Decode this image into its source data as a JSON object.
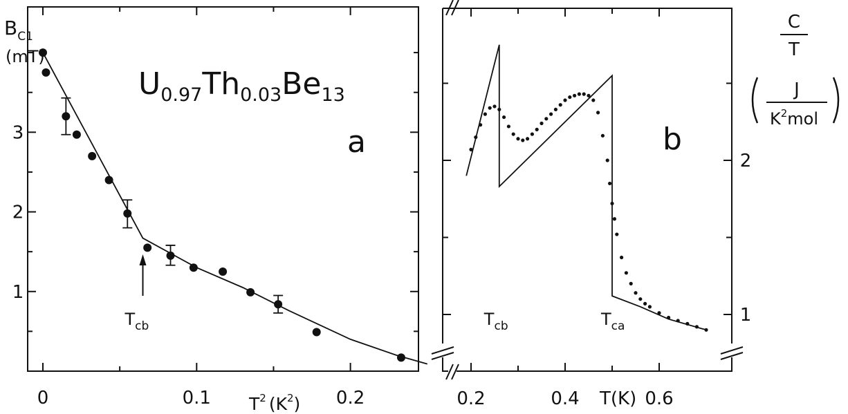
{
  "colors": {
    "ink": "#111111",
    "background": "#ffffff"
  },
  "chart_data": [
    {
      "panel": "a",
      "type": "scatter",
      "title": "U0.97Th0.03Be13",
      "formula": {
        "el1": "U",
        "sub1": "0.97",
        "el2": "Th",
        "sub2": "0.03",
        "el3": "Be",
        "sub3": "13"
      },
      "panel_label": "a",
      "ylabel": {
        "main": "B",
        "sub": "C1",
        "unit": "(mT)"
      },
      "xlabel": {
        "main": "T",
        "sup": "2",
        "unit": "(K",
        "unit_sup": "2",
        "close": ")"
      },
      "xlim": [
        0,
        0.26
      ],
      "ylim": [
        0,
        4.4
      ],
      "xticks": [
        0,
        0.1,
        0.2
      ],
      "xtick_labels": [
        "0",
        "0.1",
        "0.2"
      ],
      "yticks": [
        1,
        2,
        3
      ],
      "ytick_labels": [
        "1",
        "2",
        "3"
      ],
      "grid": false,
      "annotation": {
        "main": "T",
        "sub": "cb",
        "arrow_x": 0.065
      },
      "series": [
        {
          "kind": "points",
          "x": [
            0.0,
            0.002,
            0.015,
            0.022,
            0.032,
            0.043,
            0.055,
            0.068,
            0.083,
            0.098,
            0.117,
            0.135,
            0.153,
            0.178,
            0.233
          ],
          "y": [
            4.0,
            3.75,
            3.2,
            2.97,
            2.7,
            2.4,
            1.98,
            1.55,
            1.45,
            1.3,
            1.25,
            0.99,
            0.84,
            0.49,
            0.17
          ],
          "error_bars": [
            {
              "x": 0.015,
              "low": 2.97,
              "high": 3.43
            },
            {
              "x": 0.055,
              "low": 1.8,
              "high": 2.15
            },
            {
              "x": 0.083,
              "low": 1.33,
              "high": 1.58
            },
            {
              "x": 0.153,
              "low": 0.73,
              "high": 0.95
            }
          ]
        },
        {
          "kind": "line",
          "x": [
            0.0,
            0.065,
            0.1,
            0.13,
            0.16,
            0.2,
            0.23,
            0.25
          ],
          "y": [
            4.0,
            1.67,
            1.3,
            1.05,
            0.76,
            0.4,
            0.2,
            0.09
          ]
        }
      ]
    },
    {
      "panel": "b",
      "type": "scatter",
      "panel_label": "b",
      "ylabel": {
        "num": "C",
        "den": "T",
        "unit_num": "J",
        "unit_den_main": "K",
        "unit_den_sup": "2",
        "unit_den_rest": "mol"
      },
      "xlabel": {
        "text": "T(K)"
      },
      "xlim": [
        0.18,
        0.7
      ],
      "ylim": [
        0.85,
        2.85
      ],
      "xticks": [
        0.2,
        0.4,
        0.6
      ],
      "xtick_labels": [
        "0.2",
        "0.4",
        "0.6"
      ],
      "yticks": [
        1,
        2
      ],
      "ytick_labels": [
        "1",
        "2"
      ],
      "grid": false,
      "annotations": [
        {
          "main": "T",
          "sub": "cb",
          "x": 0.26
        },
        {
          "main": "T",
          "sub": "ca",
          "x": 0.5
        }
      ],
      "series": [
        {
          "kind": "points",
          "x": [
            0.2,
            0.21,
            0.22,
            0.23,
            0.24,
            0.25,
            0.26,
            0.27,
            0.28,
            0.29,
            0.3,
            0.31,
            0.32,
            0.33,
            0.34,
            0.35,
            0.36,
            0.37,
            0.38,
            0.39,
            0.4,
            0.41,
            0.42,
            0.43,
            0.44,
            0.45,
            0.46,
            0.47,
            0.48,
            0.49,
            0.495,
            0.5,
            0.505,
            0.51,
            0.52,
            0.53,
            0.54,
            0.55,
            0.56,
            0.57,
            0.58,
            0.6,
            0.62,
            0.64,
            0.66,
            0.68,
            0.7
          ],
          "y": [
            2.07,
            2.15,
            2.23,
            2.3,
            2.34,
            2.35,
            2.33,
            2.28,
            2.22,
            2.17,
            2.14,
            2.13,
            2.14,
            2.17,
            2.2,
            2.24,
            2.27,
            2.3,
            2.33,
            2.36,
            2.39,
            2.41,
            2.42,
            2.43,
            2.43,
            2.42,
            2.39,
            2.31,
            2.16,
            2.0,
            1.85,
            1.72,
            1.62,
            1.52,
            1.37,
            1.27,
            1.2,
            1.14,
            1.1,
            1.07,
            1.05,
            1.01,
            0.98,
            0.96,
            0.94,
            0.92,
            0.9
          ]
        },
        {
          "kind": "line",
          "x": [
            0.19,
            0.26,
            0.26,
            0.5,
            0.5,
            0.56,
            0.62,
            0.7
          ],
          "y": [
            1.9,
            2.75,
            1.83,
            2.55,
            1.12,
            1.05,
            0.97,
            0.9
          ]
        }
      ]
    }
  ]
}
